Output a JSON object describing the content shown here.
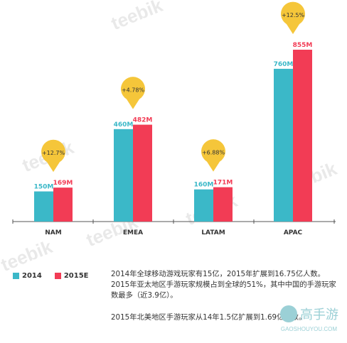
{
  "chart_data": {
    "type": "bar",
    "categories": [
      "NAM",
      "EMEA",
      "LATAM",
      "APAC"
    ],
    "series": [
      {
        "name": "2014",
        "values": [
          150,
          460,
          160,
          760
        ],
        "labels": [
          "150M",
          "460M",
          "160M",
          "760M"
        ],
        "color": "#3bb8c8"
      },
      {
        "name": "2015E",
        "values": [
          169,
          482,
          171,
          855
        ],
        "labels": [
          "169M",
          "482M",
          "171M",
          "855M"
        ],
        "color": "#f23c55"
      }
    ],
    "growth": [
      "+12.7%",
      "+4.78%",
      "+6.88%",
      "+12.5%"
    ],
    "growth_color": "#f5c63a",
    "ylim": [
      0,
      900
    ],
    "grid": false,
    "legend": "bottom-left"
  },
  "legend": {
    "label_2014": "2014",
    "label_2015e": "2015E"
  },
  "notes": {
    "line1": "2014年全球移动游戏玩家有15亿，2015年扩展到16.75亿人数。2015年亚太地区手游玩家规模占到全球的51%，其中中国的手游玩家数最多（近3.9亿）。",
    "line2": "2015年北美地区手游玩家从14年1.5亿扩展到1.69亿人数。"
  },
  "watermark": "teebik",
  "logo": {
    "text": "高手游",
    "sub": "GAOSHOUYOU.COM"
  }
}
